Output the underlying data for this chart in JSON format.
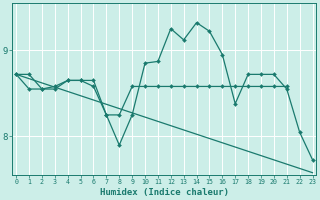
{
  "xlabel": "Humidex (Indice chaleur)",
  "bg_color": "#cceee8",
  "line_color": "#1a7a6e",
  "grid_color": "#ffffff",
  "x_ticks": [
    0,
    1,
    2,
    3,
    4,
    5,
    6,
    7,
    8,
    9,
    10,
    11,
    12,
    13,
    14,
    15,
    16,
    17,
    18,
    19,
    20,
    21,
    22,
    23
  ],
  "y_ticks": [
    8,
    9
  ],
  "ylim": [
    7.55,
    9.55
  ],
  "xlim": [
    -0.3,
    23.3
  ],
  "series1_x": [
    0,
    1,
    2,
    3,
    4,
    5,
    6,
    7,
    8,
    9,
    10,
    11,
    12,
    13,
    14,
    15,
    16,
    17,
    18,
    19,
    20,
    21,
    22,
    23
  ],
  "series1_y": [
    8.72,
    8.55,
    8.55,
    8.58,
    8.65,
    8.65,
    8.58,
    8.25,
    7.9,
    8.25,
    8.85,
    8.87,
    9.25,
    9.12,
    9.32,
    9.22,
    8.95,
    8.38,
    8.72,
    8.72,
    8.72,
    8.55,
    8.05,
    7.73
  ],
  "series2_x": [
    0,
    23
  ],
  "series2_y": [
    8.72,
    7.58
  ],
  "series3_x": [
    0,
    1,
    2,
    3,
    4,
    5,
    6,
    7,
    8,
    9,
    10,
    11,
    12,
    13,
    14,
    15,
    16,
    17,
    18,
    19,
    20,
    21
  ],
  "series3_y": [
    8.72,
    8.72,
    8.55,
    8.55,
    8.65,
    8.65,
    8.65,
    8.25,
    8.25,
    8.58,
    8.58,
    8.58,
    8.58,
    8.58,
    8.58,
    8.58,
    8.58,
    8.58,
    8.58,
    8.58,
    8.58,
    8.58
  ]
}
